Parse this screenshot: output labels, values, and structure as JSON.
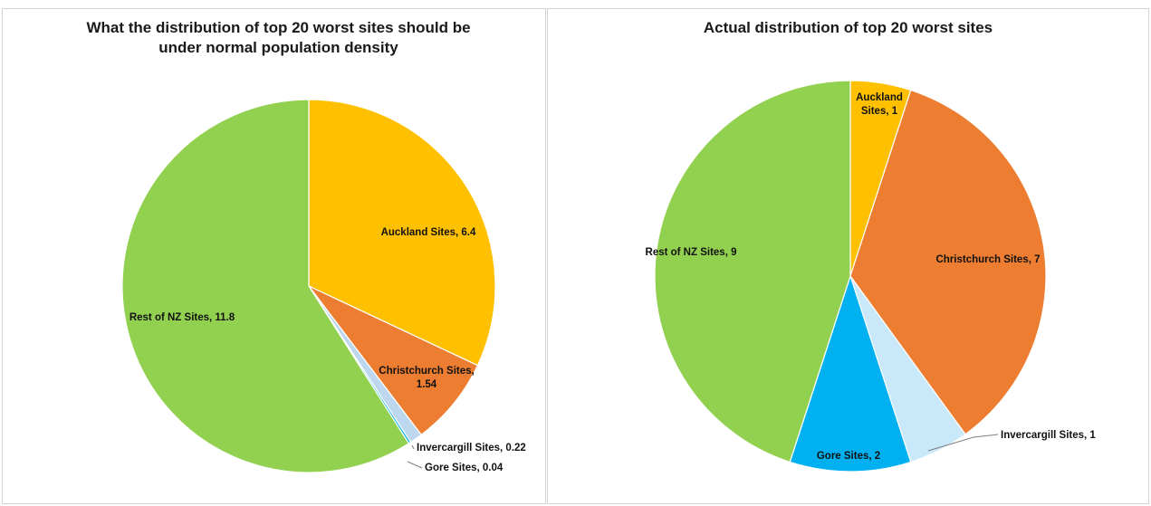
{
  "chart_data": [
    {
      "type": "pie",
      "title": "What the distribution of top 20 worst sites should be under normal population density",
      "slices": [
        {
          "name": "Auckland Sites",
          "value": 6.4,
          "color": "#FFC000",
          "label": "Auckland Sites, 6.4"
        },
        {
          "name": "Christchurch Sites",
          "value": 1.54,
          "color": "#ED7D31",
          "label_lines": [
            "Christchurch Sites,",
            "1.54"
          ]
        },
        {
          "name": "Invercargill Sites",
          "value": 0.22,
          "color": "#BDD7EE",
          "label": "Invercargill Sites, 0.22"
        },
        {
          "name": "Gore Sites",
          "value": 0.04,
          "color": "#00B0F0",
          "label": "Gore Sites, 0.04"
        },
        {
          "name": "Rest of NZ Sites",
          "value": 11.8,
          "color": "#92D050",
          "label": "Rest of NZ Sites, 11.8"
        }
      ]
    },
    {
      "type": "pie",
      "title": "Actual distribution of top 20 worst sites",
      "slices": [
        {
          "name": "Auckland Sites",
          "value": 1,
          "color": "#FFC000",
          "label_lines": [
            "Auckland",
            "Sites, 1"
          ]
        },
        {
          "name": "Christchurch Sites",
          "value": 7,
          "color": "#ED7D31",
          "label": "Christchurch Sites, 7"
        },
        {
          "name": "Invercargill Sites",
          "value": 1,
          "color": "#C9E8FA",
          "label": "Invercargill Sites, 1"
        },
        {
          "name": "Gore Sites",
          "value": 2,
          "color": "#00B0F0",
          "label": "Gore Sites, 2"
        },
        {
          "name": "Rest of NZ Sites",
          "value": 9,
          "color": "#92D050",
          "label": "Rest of NZ Sites, 9"
        }
      ]
    }
  ]
}
